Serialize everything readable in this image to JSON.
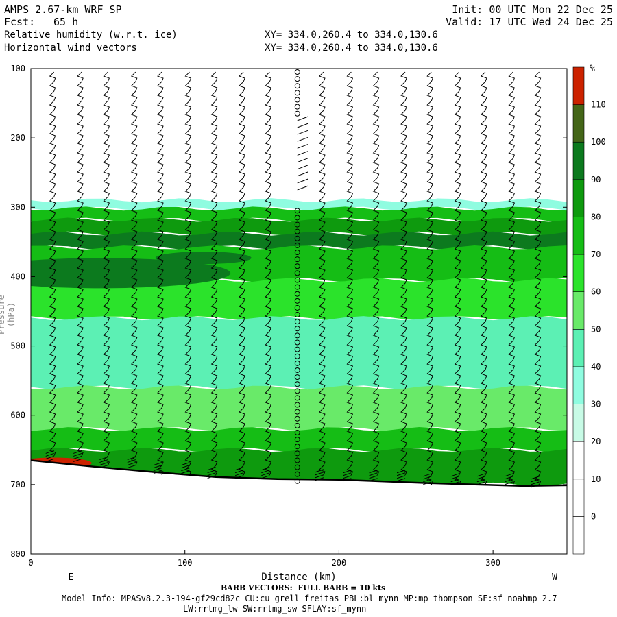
{
  "header": {
    "model": "AMPS 2.67-km WRF SP",
    "init": "Init: 00 UTC Mon 22 Dec 25",
    "fcst_label": "Fcst:",
    "fcst_value": "65 h",
    "valid": "Valid: 17 UTC Wed 24 Dec 25",
    "field1": "Relative humidity (w.r.t. ice)",
    "field2": "Horizontal wind vectors",
    "xy1": "XY= 334.0,260.4 to 334.0,130.6",
    "xy2": "XY= 334.0,260.4 to 334.0,130.6"
  },
  "footer": {
    "barb_note": "BARB VECTORS:  FULL BARB = 10 kts",
    "model_info": "Model Info: MPASv8.2.3-194-gf29cd82c CU:cu_grell_freitas PBL:bl_mynn MP:mp_thompson SF:sf_noahmp 2.7",
    "model_info2": "LW:rrtmg_lw SW:rrtmg_sw SFLAY:sf_mynn"
  },
  "chart_data": {
    "type": "heatmap",
    "title": "Relative humidity (w.r.t. ice)",
    "xlabel": "Distance (km)",
    "ylabel": "Pressure (hPa)",
    "x_range": [
      0,
      348
    ],
    "y_range": [
      100,
      800
    ],
    "y_reversed": true,
    "x_ticks": [
      0,
      100,
      200,
      300
    ],
    "y_ticks": [
      100,
      200,
      300,
      400,
      500,
      600,
      700,
      800
    ],
    "x_end_labels": {
      "left": "E",
      "right": "W"
    },
    "colorbar": {
      "unit": "%",
      "levels": [
        0,
        10,
        20,
        30,
        40,
        50,
        60,
        70,
        80,
        90,
        100,
        110
      ],
      "colors": [
        "#ffffff",
        "#ffffff",
        "#ffffff",
        "#c8fbe6",
        "#8ffce0",
        "#5cf0b4",
        "#69ea69",
        "#2be32b",
        "#15bd15",
        "#0e9a0e",
        "#0c7a1e",
        "#446618",
        "#cc2200"
      ]
    },
    "terrain_pressure": [
      {
        "x": 0,
        "p": 665
      },
      {
        "x": 40,
        "p": 674
      },
      {
        "x": 80,
        "p": 682
      },
      {
        "x": 120,
        "p": 689
      },
      {
        "x": 160,
        "p": 692
      },
      {
        "x": 200,
        "p": 693
      },
      {
        "x": 260,
        "p": 698
      },
      {
        "x": 320,
        "p": 702
      },
      {
        "x": 348,
        "p": 701
      }
    ],
    "humidity_bands": [
      {
        "from": 290,
        "to": 302,
        "rh": 35
      },
      {
        "from": 302,
        "to": 318,
        "rh": 75
      },
      {
        "from": 318,
        "to": 338,
        "rh": 85
      },
      {
        "from": 338,
        "to": 358,
        "rh": 92
      },
      {
        "from": 358,
        "to": 405,
        "rh": 78
      },
      {
        "from": 405,
        "to": 460,
        "rh": 65
      },
      {
        "from": 460,
        "to": 560,
        "rh": 48
      },
      {
        "from": 560,
        "to": 620,
        "rh": 55
      },
      {
        "from": 620,
        "to": 650,
        "rh": 70
      },
      {
        "from": 650,
        "to": 700,
        "rh": 88
      }
    ],
    "wind_barb_columns_km": [
      15,
      33,
      50,
      68,
      85,
      103,
      120,
      138,
      155,
      173,
      190,
      208,
      225,
      243,
      260,
      278,
      295,
      313,
      330
    ],
    "calm_column_km": 173
  }
}
